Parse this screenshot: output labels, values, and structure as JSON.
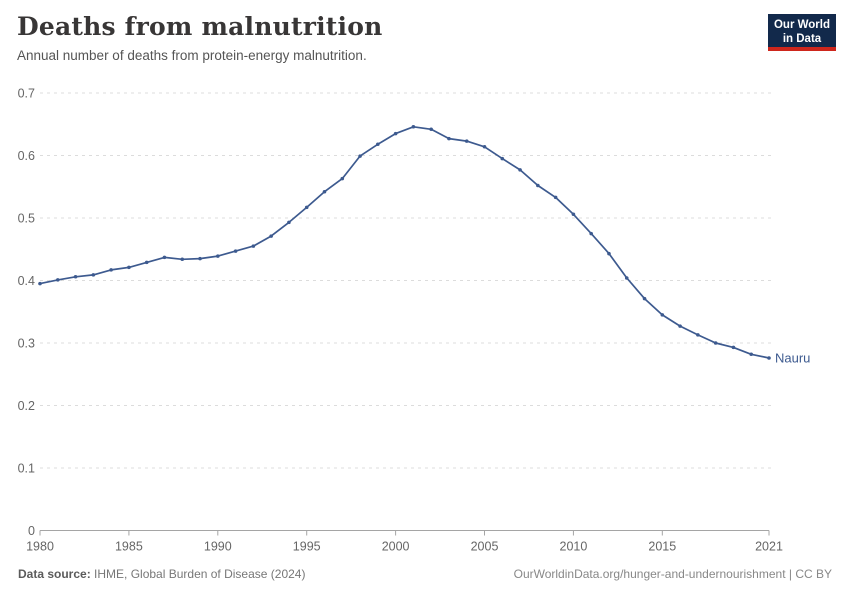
{
  "header": {
    "title": "Deaths from malnutrition",
    "subtitle": "Annual number of deaths from protein-energy malnutrition.",
    "logo": {
      "line1": "Our World",
      "line2": "in Data",
      "bg_color": "#12294b",
      "strip_color": "#ce261c"
    }
  },
  "chart_data": {
    "type": "line",
    "title": "Deaths from malnutrition",
    "subtitle": "Annual number of deaths from protein-energy malnutrition.",
    "xlabel": "",
    "ylabel": "",
    "xlim": [
      1980,
      2021
    ],
    "ylim": [
      0,
      0.7
    ],
    "xticks": [
      1980,
      1985,
      1990,
      1995,
      2000,
      2005,
      2010,
      2015,
      2021
    ],
    "yticks": [
      0,
      0.1,
      0.2,
      0.3,
      0.4,
      0.5,
      0.6,
      0.7
    ],
    "grid": "horizontal-dashed",
    "legend_position": "end-of-line-label",
    "colors": {
      "line": "#3d5a8f",
      "grid": "#dcdcdc",
      "axis": "#a5a5a5",
      "tick_text": "#666666"
    },
    "series": [
      {
        "name": "Nauru",
        "color": "#3d5a8f",
        "x": [
          1980,
          1981,
          1982,
          1983,
          1984,
          1985,
          1986,
          1987,
          1988,
          1989,
          1990,
          1991,
          1992,
          1993,
          1994,
          1995,
          1996,
          1997,
          1998,
          1999,
          2000,
          2001,
          2002,
          2003,
          2004,
          2005,
          2006,
          2007,
          2008,
          2009,
          2010,
          2011,
          2012,
          2013,
          2014,
          2015,
          2016,
          2017,
          2018,
          2019,
          2020,
          2021
        ],
        "values": [
          0.395,
          0.401,
          0.406,
          0.409,
          0.417,
          0.421,
          0.429,
          0.437,
          0.434,
          0.435,
          0.439,
          0.447,
          0.455,
          0.471,
          0.493,
          0.517,
          0.542,
          0.563,
          0.599,
          0.618,
          0.635,
          0.646,
          0.642,
          0.627,
          0.623,
          0.614,
          0.595,
          0.577,
          0.552,
          0.533,
          0.506,
          0.475,
          0.443,
          0.404,
          0.371,
          0.345,
          0.327,
          0.313,
          0.3,
          0.293,
          0.282,
          0.276
        ]
      }
    ]
  },
  "footer": {
    "datasource_prefix": "Data source:",
    "datasource_text": " IHME, Global Burden of Disease (2024)",
    "credit": "OurWorldinData.org/hunger-and-undernourishment | CC BY"
  }
}
